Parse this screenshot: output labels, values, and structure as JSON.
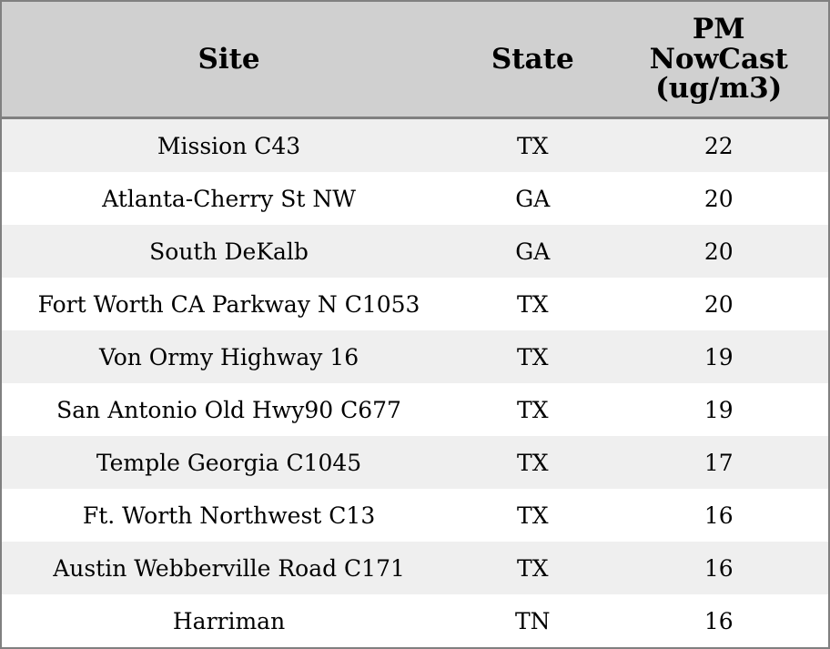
{
  "table": {
    "header": [
      "Site",
      "State",
      "PM NowCast (ug/m3)"
    ],
    "rows": [
      [
        "Mission C43",
        "TX",
        22
      ],
      [
        "Atlanta-Cherry St NW",
        "GA",
        20
      ],
      [
        "South DeKalb",
        "GA",
        20
      ],
      [
        "Fort Worth CA Parkway N C1053",
        "TX",
        20
      ],
      [
        "Von Ormy Highway 16",
        "TX",
        19
      ],
      [
        "San Antonio Old Hwy90 C677",
        "TX",
        19
      ],
      [
        "Temple Georgia C1045",
        "TX",
        17
      ],
      [
        "Ft. Worth Northwest C13",
        "TX",
        16
      ],
      [
        "Austin Webberville Road C171",
        "TX",
        16
      ],
      [
        "Harriman",
        "TN",
        16
      ]
    ]
  }
}
